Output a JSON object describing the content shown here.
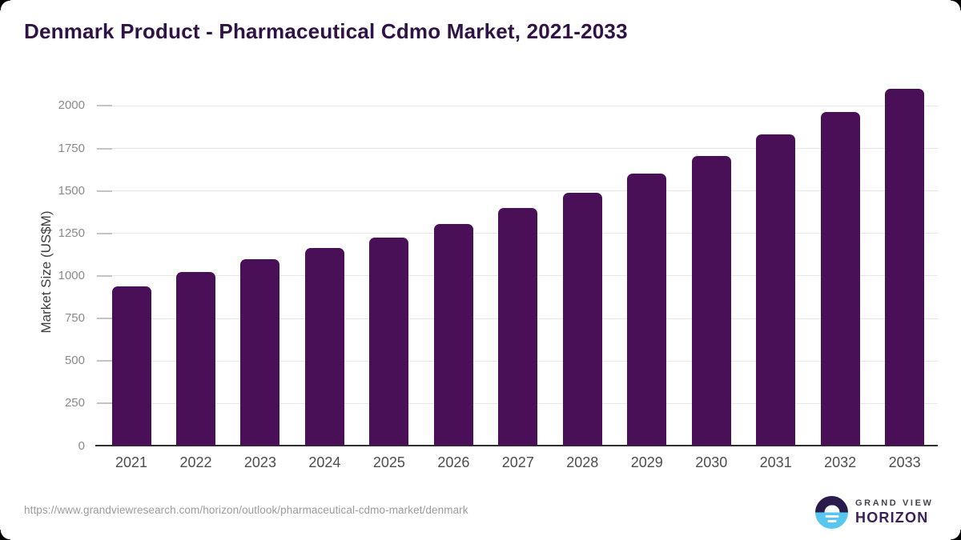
{
  "title": "Denmark Product - Pharmaceutical Cdmo Market, 2021-2033",
  "chart_data": {
    "type": "bar",
    "title": "Denmark Product - Pharmaceutical Cdmo Market, 2021-2033",
    "categories": [
      "2021",
      "2022",
      "2023",
      "2024",
      "2025",
      "2026",
      "2027",
      "2028",
      "2029",
      "2030",
      "2031",
      "2032",
      "2033"
    ],
    "values": [
      935,
      1020,
      1095,
      1160,
      1225,
      1305,
      1395,
      1485,
      1600,
      1705,
      1830,
      1960,
      2100
    ],
    "xlabel": "",
    "ylabel": "Market Size (US$M)",
    "yticks": [
      0,
      250,
      500,
      750,
      1000,
      1250,
      1500,
      1750,
      2000
    ],
    "ylim": [
      0,
      2150
    ],
    "grid": true,
    "legend": false,
    "bar_color": "#4A1057"
  },
  "footer": {
    "source_url": "https://www.grandviewresearch.com/horizon/outlook/pharmaceutical-cdmo-market/denmark"
  },
  "logo": {
    "top_text": "GRAND VIEW",
    "bottom_text": "HORIZON"
  },
  "colors": {
    "title_text": "#301345",
    "bar": "#4A1057",
    "gridline": "#E7E7E7",
    "tick_mark": "#C4C4C4",
    "axis_line": "#303030",
    "y_tick_label": "#8A8A8A",
    "x_tick_label": "#4D4D4D",
    "y_axis_title": "#3D3D3D",
    "source_url": "#9B9B9B",
    "logo_dark": "#2B1B4D",
    "logo_blue": "#58C7F0",
    "logo_top_text": "#46424E",
    "logo_bottom_text": "#3B2156"
  }
}
